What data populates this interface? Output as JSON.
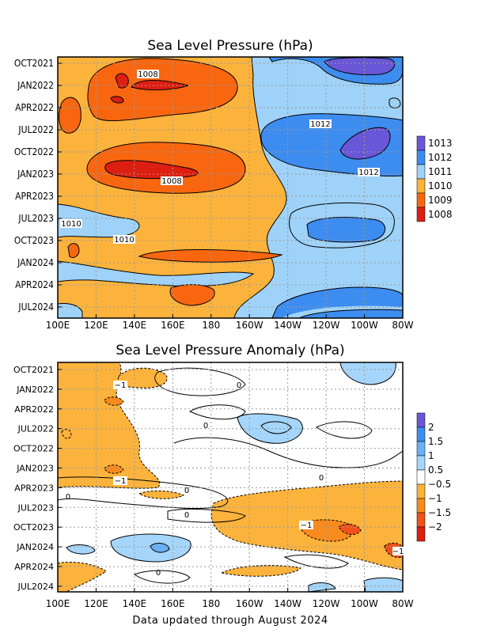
{
  "chart_data": [
    {
      "type": "heatmap",
      "title": "Sea Level Pressure (hPa)",
      "y_ticks": [
        "OCT2021",
        "JAN2022",
        "APR2022",
        "JUL2022",
        "OCT2022",
        "JAN2023",
        "APR2023",
        "JUL2023",
        "OCT2023",
        "JAN2024",
        "APR2024",
        "JUL2024"
      ],
      "x_ticks": [
        "100E",
        "120E",
        "140E",
        "160E",
        "180",
        "160W",
        "140W",
        "120W",
        "100W",
        "80W"
      ],
      "legend": {
        "levels": [
          "1008",
          "1009",
          "1010",
          "1011",
          "1012",
          "1013"
        ],
        "colors": [
          "#dd1f12",
          "#f96610",
          "#fcb33c",
          "#9fd2f8",
          "#3d8cf0",
          "#6a57d7"
        ]
      },
      "contour_labels": [
        "1008",
        "1008",
        "1012",
        "1012",
        "1010",
        "1010"
      ]
    },
    {
      "type": "heatmap",
      "title": "Sea Level Pressure Anomaly (hPa)",
      "y_ticks": [
        "OCT2021",
        "JAN2022",
        "APR2022",
        "JUL2022",
        "OCT2022",
        "JAN2023",
        "APR2023",
        "JUL2023",
        "OCT2023",
        "JAN2024",
        "APR2024",
        "JUL2024"
      ],
      "x_ticks": [
        "100E",
        "120E",
        "140E",
        "160E",
        "180",
        "160W",
        "140W",
        "120W",
        "100W",
        "80W"
      ],
      "legend": {
        "levels": [
          "2",
          "1.5",
          "1",
          "0.5",
          "−0.5",
          "−1",
          "−1.5",
          "−2"
        ],
        "colors": [
          "#6a57d7",
          "#3d8cf0",
          "#6ab0f5",
          "#a5d5fa",
          "#ffffff",
          "#fcb33c",
          "#f88a1e",
          "#f0511a",
          "#dd1f12"
        ]
      },
      "contour_labels": [
        "−1",
        "−1",
        "−1",
        "−1",
        "0",
        "0",
        "0",
        "0",
        "0",
        "0",
        "0"
      ]
    }
  ],
  "footer": "Data updated through August 2024"
}
